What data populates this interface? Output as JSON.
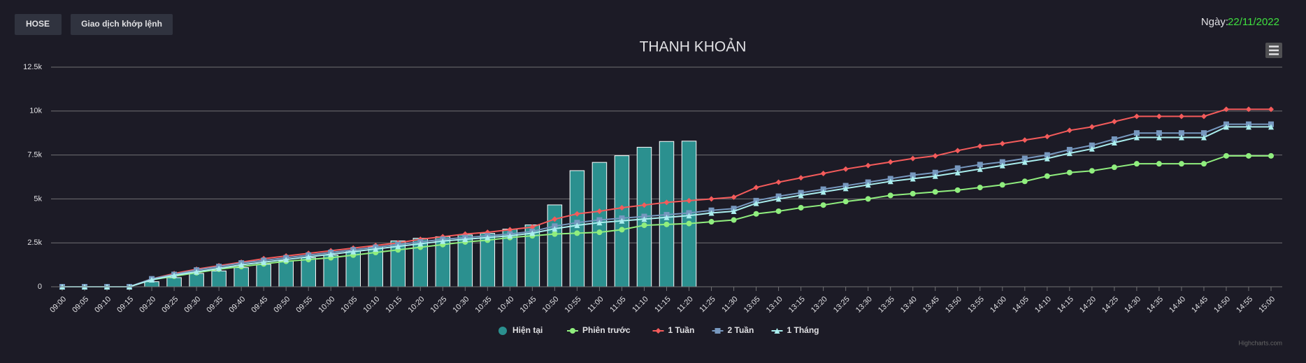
{
  "header": {
    "buttons": [
      "HOSE",
      "Giao dịch khớp lệnh"
    ],
    "date_label": "Ngày:",
    "date": "22/11/2022"
  },
  "chart_data": {
    "type": "bar-line",
    "title": "THANH KHOẢN",
    "categories": [
      "09:00",
      "09:05",
      "09:10",
      "09:15",
      "09:20",
      "09:25",
      "09:30",
      "09:35",
      "09:40",
      "09:45",
      "09:50",
      "09:55",
      "10:00",
      "10:05",
      "10:10",
      "10:15",
      "10:20",
      "10:25",
      "10:30",
      "10:35",
      "10:40",
      "10:45",
      "10:50",
      "10:55",
      "11:00",
      "11:05",
      "11:10",
      "11:15",
      "11:20",
      "11:25",
      "11:30",
      "13:05",
      "13:10",
      "13:15",
      "13:20",
      "13:25",
      "13:30",
      "13:35",
      "13:40",
      "13:45",
      "13:50",
      "13:55",
      "14:00",
      "14:05",
      "14:10",
      "14:15",
      "14:20",
      "14:25",
      "14:30",
      "14:35",
      "14:40",
      "14:45",
      "14:50",
      "14:55",
      "15:00"
    ],
    "series": [
      {
        "name": "Hiện tại",
        "kind": "bar",
        "color": "#2b908f",
        "values": [
          0,
          0,
          0,
          0,
          290,
          520,
          760,
          900,
          1090,
          1280,
          1470,
          1660,
          1800,
          2040,
          2280,
          2610,
          2760,
          2850,
          2950,
          3040,
          3280,
          3520,
          4660,
          6610,
          7080,
          7460,
          7940,
          8270,
          8290,
          null,
          null,
          null,
          null,
          null,
          null,
          null,
          null,
          null,
          null,
          null,
          null,
          null,
          null,
          null,
          null,
          null,
          null,
          null,
          null,
          null,
          null,
          null,
          null,
          null,
          null
        ]
      },
      {
        "name": "Phiên trước",
        "kind": "line",
        "marker": "circle",
        "color": "#90ee7e",
        "values": [
          0,
          0,
          0,
          0,
          400,
          600,
          800,
          1000,
          1150,
          1300,
          1450,
          1550,
          1650,
          1800,
          1950,
          2100,
          2250,
          2400,
          2550,
          2650,
          2800,
          2900,
          3000,
          3050,
          3100,
          3250,
          3500,
          3550,
          3600,
          3700,
          3800,
          4150,
          4300,
          4500,
          4650,
          4850,
          5000,
          5200,
          5300,
          5400,
          5500,
          5650,
          5800,
          6000,
          6300,
          6500,
          6600,
          6800,
          7000,
          7000,
          7000,
          7000,
          7450,
          7450,
          7450
        ]
      },
      {
        "name": "1 Tuần",
        "kind": "line",
        "marker": "diamond",
        "color": "#f45b5b",
        "values": [
          0,
          0,
          0,
          0,
          450,
          750,
          1000,
          1200,
          1400,
          1600,
          1750,
          1900,
          2050,
          2200,
          2350,
          2500,
          2700,
          2850,
          3000,
          3100,
          3250,
          3400,
          3850,
          4150,
          4300,
          4500,
          4650,
          4800,
          4900,
          5000,
          5100,
          5650,
          5950,
          6200,
          6450,
          6700,
          6900,
          7100,
          7300,
          7450,
          7750,
          8000,
          8150,
          8350,
          8550,
          8900,
          9100,
          9400,
          9700,
          9700,
          9700,
          9700,
          10100,
          10100,
          10100
        ]
      },
      {
        "name": "2 Tuần",
        "kind": "line",
        "marker": "square",
        "color": "#7798bf",
        "values": [
          0,
          0,
          0,
          0,
          450,
          700,
          950,
          1150,
          1350,
          1500,
          1650,
          1800,
          1950,
          2100,
          2250,
          2400,
          2550,
          2700,
          2800,
          2900,
          3000,
          3150,
          3450,
          3650,
          3800,
          3900,
          4000,
          4100,
          4200,
          4350,
          4450,
          4900,
          5150,
          5350,
          5550,
          5750,
          5950,
          6150,
          6350,
          6500,
          6750,
          6950,
          7100,
          7300,
          7500,
          7800,
          8050,
          8400,
          8750,
          8750,
          8750,
          8750,
          9250,
          9250,
          9250
        ]
      },
      {
        "name": "1 Tháng",
        "kind": "line",
        "marker": "triangle",
        "color": "#aaeeee",
        "values": [
          0,
          0,
          0,
          0,
          400,
          650,
          850,
          1050,
          1250,
          1400,
          1550,
          1700,
          1850,
          2000,
          2150,
          2300,
          2450,
          2600,
          2700,
          2800,
          2900,
          3050,
          3300,
          3500,
          3650,
          3750,
          3850,
          3950,
          4050,
          4200,
          4300,
          4750,
          5000,
          5200,
          5400,
          5600,
          5800,
          6000,
          6150,
          6300,
          6500,
          6700,
          6900,
          7100,
          7300,
          7600,
          7850,
          8200,
          8500,
          8500,
          8500,
          8500,
          9100,
          9100,
          9100
        ]
      }
    ],
    "ylim": [
      0,
      12500
    ],
    "yticks": [
      0,
      {
        "value": 2500,
        "label": "2.5k"
      },
      {
        "value": 5000,
        "label": "5k"
      },
      {
        "value": 7500,
        "label": "7.5k"
      },
      {
        "value": 10000,
        "label": "10k"
      },
      {
        "value": 12500,
        "label": "12.5k"
      }
    ],
    "grid": true,
    "legend": "bottom",
    "credit": "Highcharts.com"
  }
}
